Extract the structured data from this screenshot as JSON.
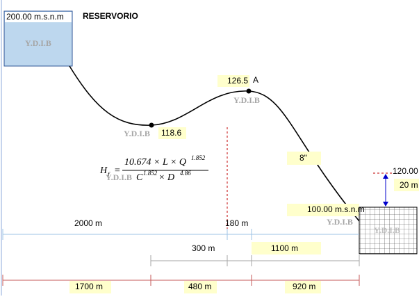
{
  "reservoir": {
    "elevation": "200.00 m.s.n.m",
    "name": "RESERVORIO"
  },
  "watermark": "Y.D.I.B",
  "points": {
    "low": "118.6",
    "high": "126.5",
    "high_name": "A",
    "outlet": "100.00 m.s.n.m",
    "tank_top": "120.00",
    "tank_head": "20 m"
  },
  "pipe": {
    "diameter": "8\""
  },
  "formula": {
    "lhs": "H",
    "lhs_sub": "f",
    "num": "10.674 × L × Q",
    "num_exp": "1.852",
    "den_c": "C",
    "den_c_exp": "1.852",
    "den_d": " × D",
    "den_d_exp": "4.86"
  },
  "lengths": {
    "row1": [
      "2000 m",
      "180 m"
    ],
    "row2": [
      "300 m",
      "1100 m"
    ],
    "row3": [
      "1700 m",
      "480 m",
      "920 m"
    ]
  }
}
